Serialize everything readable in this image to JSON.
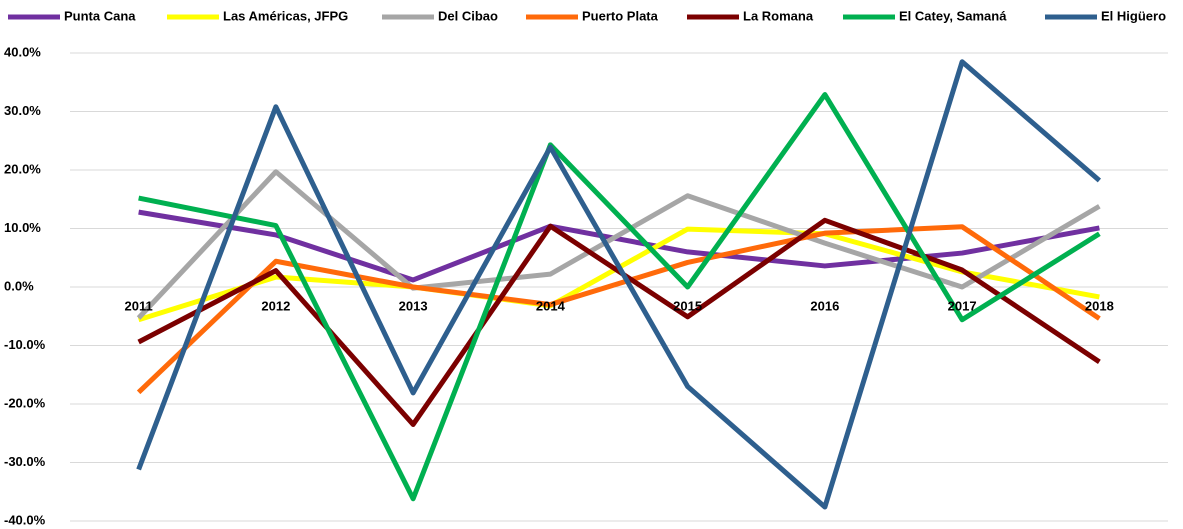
{
  "chart_data": {
    "type": "line",
    "categories": [
      "2011",
      "2012",
      "2013",
      "2014",
      "2015",
      "2016",
      "2017",
      "2018"
    ],
    "series": [
      {
        "name": "Punta Cana",
        "color": "#7030a0",
        "values": [
          12.8,
          8.9,
          1.2,
          10.4,
          6.0,
          3.6,
          5.8,
          10.1
        ]
      },
      {
        "name": "Las Américas, JFPG",
        "color": "#ffff00",
        "values": [
          -5.6,
          1.7,
          0,
          -3.2,
          9.9,
          9.1,
          2.6,
          -1.7
        ]
      },
      {
        "name": "Del Cibao",
        "color": "#a6a6a6",
        "values": [
          -5.3,
          19.7,
          -0.2,
          2.2,
          15.6,
          7.5,
          0,
          13.8
        ]
      },
      {
        "name": "Puerto Plata",
        "color": "#ff6a0a",
        "values": [
          -18.0,
          4.4,
          0,
          -3.0,
          4.2,
          9.2,
          10.3,
          -5.4
        ]
      },
      {
        "name": "La Romana",
        "color": "#7b0000",
        "values": [
          -9.4,
          2.8,
          -23.5,
          10.4,
          -5.1,
          11.4,
          2.9,
          -12.8
        ]
      },
      {
        "name": "El Catey, Samaná",
        "color": "#00b050",
        "values": [
          15.2,
          10.5,
          -36.2,
          24.3,
          0,
          32.9,
          -5.6,
          9.1
        ]
      },
      {
        "name": "El Higüero",
        "color": "#2e5f8e",
        "values": [
          -31.2,
          30.8,
          -18.1,
          23.9,
          -17.0,
          -37.6,
          38.5,
          18.2
        ]
      }
    ],
    "ylim": [
      -40,
      40
    ],
    "yticks": [
      {
        "value": -40,
        "label": "-40.0%"
      },
      {
        "value": -30,
        "label": "-30.0%"
      },
      {
        "value": -20,
        "label": "-20.0%"
      },
      {
        "value": -10,
        "label": "-10.0%"
      },
      {
        "value": 0,
        "label": "0.0%"
      },
      {
        "value": 10,
        "label": "10.0%"
      },
      {
        "value": 20,
        "label": "20.0%"
      },
      {
        "value": 30,
        "label": "30.0%"
      },
      {
        "value": 40,
        "label": "40.0%"
      }
    ],
    "grid": true,
    "legend": "top"
  }
}
